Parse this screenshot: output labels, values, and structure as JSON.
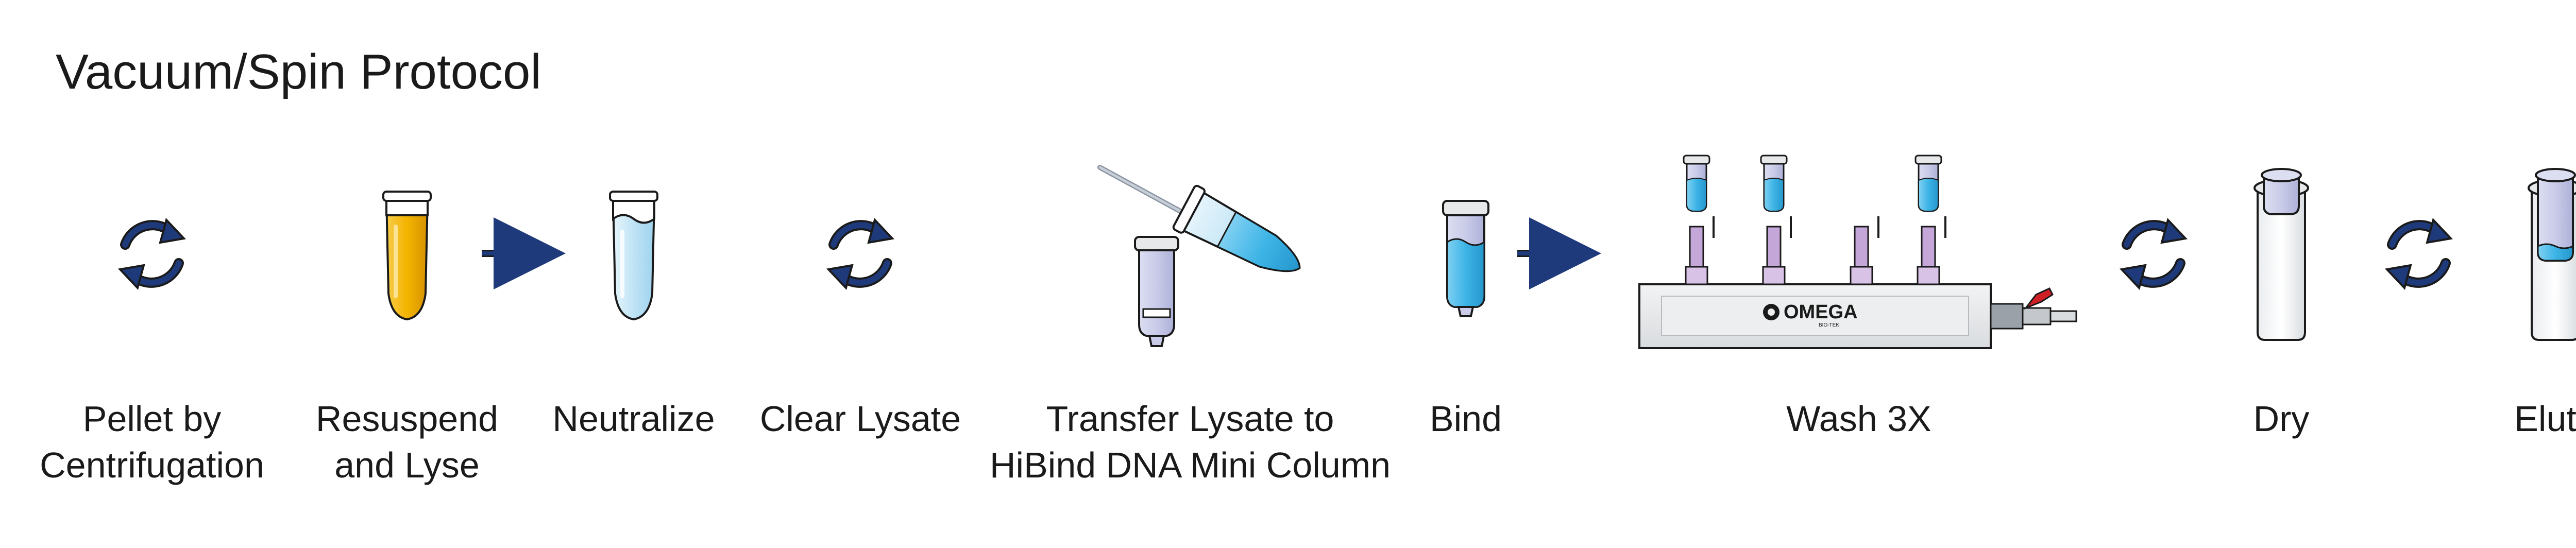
{
  "title": "Vacuum/Spin Protocol",
  "steps": [
    {
      "id": "pellet",
      "icon": "centrifuge-cycle-icon",
      "lines": [
        "Pellet by",
        "Centrifugation"
      ]
    },
    {
      "id": "resuspend",
      "icon": "yellow-tube-icon",
      "lines": [
        "Resuspend",
        "and Lyse"
      ]
    },
    {
      "id": "neutralize",
      "icon": "clear-tube-icon",
      "lines": [
        "Neutralize",
        ""
      ]
    },
    {
      "id": "clear",
      "icon": "centrifuge-cycle-icon",
      "lines": [
        "Clear Lysate",
        ""
      ]
    },
    {
      "id": "transfer",
      "icon": "transfer-pipette-icon",
      "lines": [
        "Transfer Lysate to",
        "HiBind DNA Mini Column"
      ]
    },
    {
      "id": "bind",
      "icon": "spin-column-icon",
      "lines": [
        "Bind",
        ""
      ]
    },
    {
      "id": "wash",
      "icon": "vacuum-manifold-icon",
      "lines": [
        "Wash 3X",
        ""
      ]
    },
    {
      "id": "dry",
      "icon": "collection-tube-icon",
      "lines": [
        "Dry",
        ""
      ]
    },
    {
      "id": "elute",
      "icon": "elution-tube-icon",
      "lines": [
        "Elute",
        ""
      ]
    }
  ],
  "manifold": {
    "brand": "OMEGA",
    "sub": "BIO-TEK"
  },
  "colors": {
    "ink": "#1a1a1a",
    "cycle_arrow": "#1f3a7a",
    "lysate_yellow": "#f4b400",
    "tube_blue": "#bfe3f5",
    "liquid_blue": "#3db4e6",
    "column_violet": "#c9cbe8",
    "manifold_gray": "#e6e8ea",
    "valve_red": "#d11f26"
  }
}
